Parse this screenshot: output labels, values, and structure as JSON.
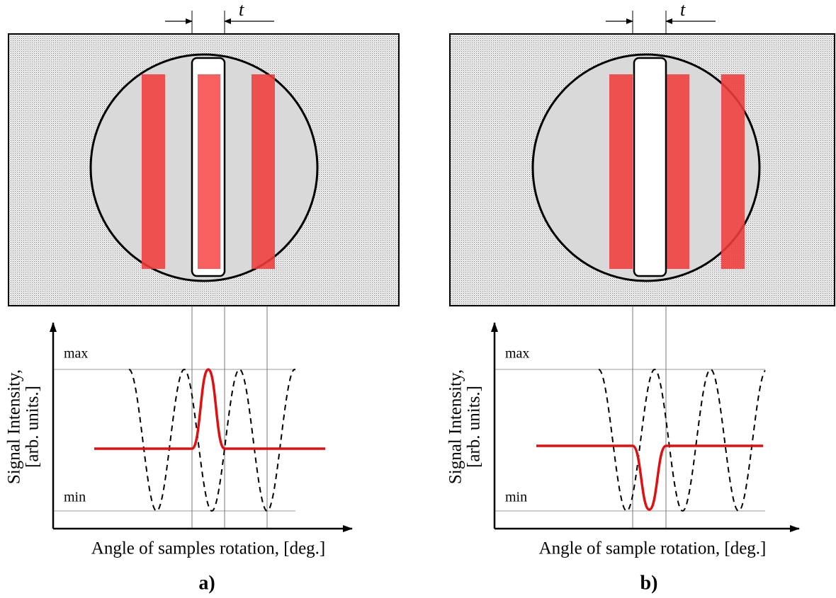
{
  "panels": [
    {
      "label": "a)",
      "gap": "t",
      "max": "max",
      "min": "min",
      "y_label": [
        "Signal Intensity,",
        "[arb. units.]"
      ],
      "x_label": "Angle of samples rotation, [deg.]"
    },
    {
      "label": "b)",
      "gap": "t",
      "max": "max",
      "min": "min",
      "y_label": [
        "Signal Intensity,",
        "[arb. units.]"
      ],
      "x_label": "Angle of sample rotation, [deg.]"
    }
  ]
}
